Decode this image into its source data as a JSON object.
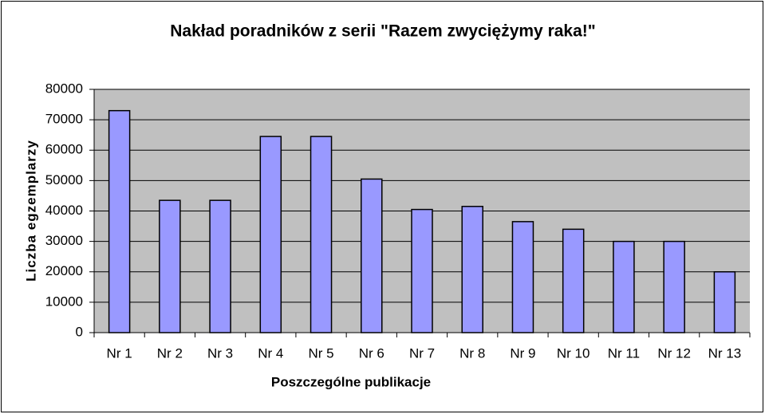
{
  "chart_data": {
    "type": "bar",
    "title": "Nakład poradników z serii \"Razem zwyciężymy raka!\"",
    "x_label": "Poszczególne publikacje",
    "y_label": "Liczba egzemplarzy",
    "categories": [
      "Nr 1",
      "Nr 2",
      "Nr 3",
      "Nr 4",
      "Nr 5",
      "Nr 6",
      "Nr 7",
      "Nr 8",
      "Nr 9",
      "Nr 10",
      "Nr 11",
      "Nr 12",
      "Nr 13"
    ],
    "values": [
      73000,
      43500,
      43500,
      64500,
      64500,
      50500,
      40500,
      41500,
      36500,
      34000,
      30000,
      30000,
      20000
    ],
    "color": "#9999ff",
    "ylim": [
      0,
      80000
    ],
    "yticks": [
      0,
      10000,
      20000,
      30000,
      40000,
      50000,
      60000,
      70000,
      80000
    ],
    "grid": true
  }
}
